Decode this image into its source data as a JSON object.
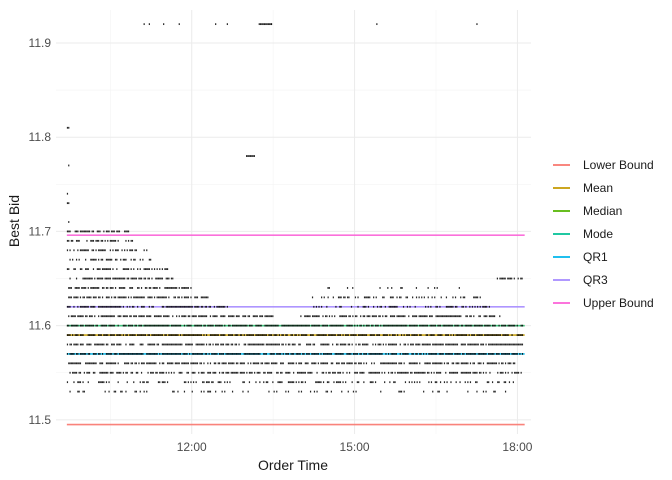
{
  "chart_data": {
    "type": "scatter",
    "xlabel": "Order Time",
    "ylabel": "Best Bid",
    "x_ticks": [
      "12:00",
      "15:00",
      "18:00"
    ],
    "x_tick_hours": [
      12,
      15,
      18
    ],
    "xlim": [
      "09:30",
      "18:15"
    ],
    "y_ticks": [
      11.5,
      11.6,
      11.7,
      11.8,
      11.9
    ],
    "y_tick_labels": [
      "11.5",
      "11.6",
      "11.7",
      "11.8",
      "11.9"
    ],
    "ylim": [
      11.485,
      11.935
    ],
    "grid": true,
    "theme": "minimal",
    "legend_position": "right",
    "reference_lines": [
      {
        "name": "Lower Bound",
        "y": 11.495,
        "color": "#F8766D"
      },
      {
        "name": "Mean",
        "y": 11.59,
        "color": "#C49A00"
      },
      {
        "name": "Median",
        "y": 11.6,
        "color": "#53B400"
      },
      {
        "name": "Mode",
        "y": 11.6,
        "color": "#00C094"
      },
      {
        "name": "QR1",
        "y": 11.57,
        "color": "#00B6EB"
      },
      {
        "name": "QR3",
        "y": 11.62,
        "color": "#A58AFF"
      },
      {
        "name": "Upper Bound",
        "y": 11.696,
        "color": "#FB61D7"
      }
    ],
    "point_color": "#000000",
    "point_bands": [
      {
        "y": 11.92,
        "start": "09:42",
        "end": "18:05",
        "density": 0.03
      },
      {
        "y": 11.92,
        "start": "13:14",
        "end": "13:28",
        "density": 0.9
      },
      {
        "y": 11.81,
        "start": "09:42",
        "end": "09:44",
        "density": 1.0
      },
      {
        "y": 11.78,
        "start": "13:00",
        "end": "13:10",
        "density": 0.4
      },
      {
        "y": 11.77,
        "start": "09:42",
        "end": "09:44",
        "density": 0.5
      },
      {
        "y": 11.74,
        "start": "09:42",
        "end": "09:44",
        "density": 0.5
      },
      {
        "y": 11.73,
        "start": "09:42",
        "end": "09:44",
        "density": 1.0
      },
      {
        "y": 11.71,
        "start": "09:42",
        "end": "09:44",
        "density": 0.5
      },
      {
        "y": 11.7,
        "start": "09:42",
        "end": "10:50",
        "density": 0.6
      },
      {
        "y": 11.69,
        "start": "09:42",
        "end": "10:55",
        "density": 0.5
      },
      {
        "y": 11.68,
        "start": "09:42",
        "end": "11:10",
        "density": 0.55
      },
      {
        "y": 11.67,
        "start": "09:42",
        "end": "11:20",
        "density": 0.55
      },
      {
        "y": 11.66,
        "start": "09:42",
        "end": "11:35",
        "density": 0.6
      },
      {
        "y": 11.65,
        "start": "09:42",
        "end": "11:40",
        "density": 0.65
      },
      {
        "y": 11.65,
        "start": "17:30",
        "end": "18:05",
        "density": 0.5
      },
      {
        "y": 11.64,
        "start": "09:42",
        "end": "12:00",
        "density": 0.65
      },
      {
        "y": 11.64,
        "start": "14:30",
        "end": "17:00",
        "density": 0.12
      },
      {
        "y": 11.63,
        "start": "09:42",
        "end": "12:20",
        "density": 0.7
      },
      {
        "y": 11.63,
        "start": "14:10",
        "end": "17:20",
        "density": 0.35
      },
      {
        "y": 11.62,
        "start": "09:42",
        "end": "12:40",
        "density": 0.7
      },
      {
        "y": 11.62,
        "start": "14:10",
        "end": "17:30",
        "density": 0.45
      },
      {
        "y": 11.61,
        "start": "09:42",
        "end": "13:30",
        "density": 0.75
      },
      {
        "y": 11.61,
        "start": "14:00",
        "end": "17:40",
        "density": 0.7
      },
      {
        "y": 11.6,
        "start": "09:42",
        "end": "18:05",
        "density": 0.8
      },
      {
        "y": 11.59,
        "start": "09:42",
        "end": "18:05",
        "density": 0.8
      },
      {
        "y": 11.58,
        "start": "09:42",
        "end": "18:05",
        "density": 0.75
      },
      {
        "y": 11.57,
        "start": "09:42",
        "end": "18:05",
        "density": 0.8
      },
      {
        "y": 11.56,
        "start": "09:42",
        "end": "18:00",
        "density": 0.7
      },
      {
        "y": 11.55,
        "start": "09:42",
        "end": "18:05",
        "density": 0.6
      },
      {
        "y": 11.54,
        "start": "09:42",
        "end": "17:55",
        "density": 0.35
      },
      {
        "y": 11.53,
        "start": "09:42",
        "end": "17:50",
        "density": 0.2
      }
    ]
  }
}
